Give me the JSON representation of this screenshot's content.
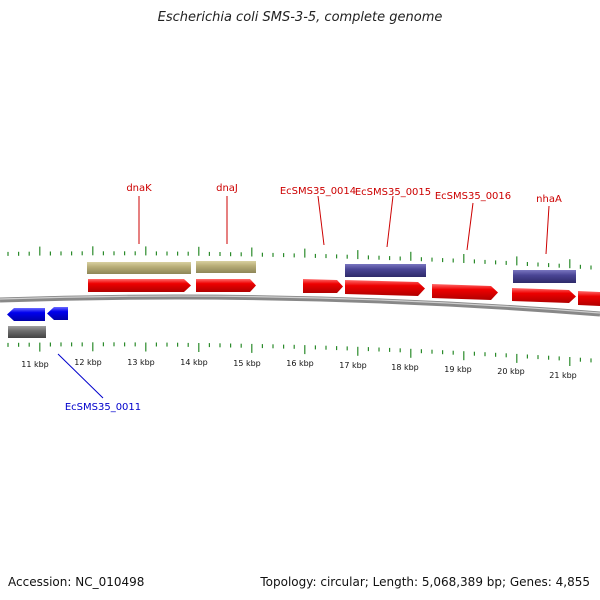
{
  "title": "Escherichia coli SMS-3-5, complete genome",
  "footer": {
    "accession": "Accession: NC_010498",
    "summary": "Topology: circular; Length: 5,068,389 bp; Genes: 4,855"
  },
  "colors": {
    "forward_cds": "#ee0000",
    "reverse_cds": "#0000ee",
    "tan_feature": "#b8ae78",
    "purple_feature": "#4a4595",
    "gray_feature": "#6e6e6e",
    "tick": "#2a8a2a",
    "backbone": "#888888",
    "label_red": "#cc0000",
    "label_blue": "#0000cc"
  },
  "axis_labels": [
    "11 kbp",
    "12 kbp",
    "13 kbp",
    "14 kbp",
    "15 kbp",
    "16 kbp",
    "17 kbp",
    "18 kbp",
    "19 kbp",
    "20 kbp",
    "21 kbp"
  ],
  "gene_labels": {
    "dnaK": "dnaK",
    "dnaJ": "dnaJ",
    "ecs14": "EcSMS35_0014",
    "ecs15": "EcSMS35_0015",
    "ecs16": "EcSMS35_0016",
    "nhaA": "nhaA",
    "ecs11": "EcSMS35_0011"
  }
}
